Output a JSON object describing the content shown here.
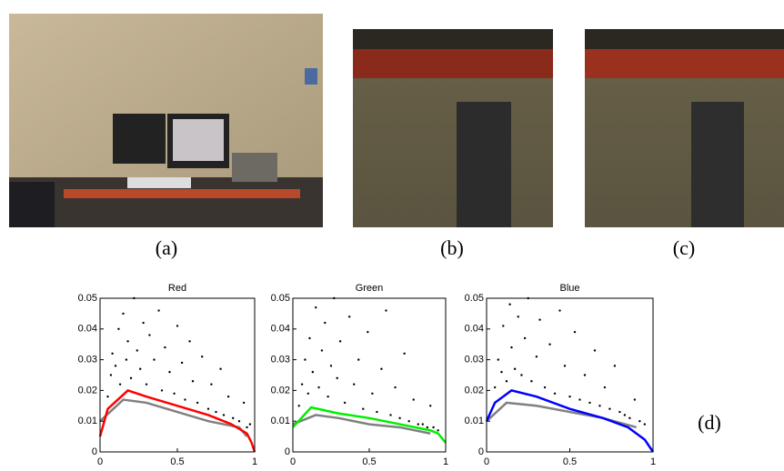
{
  "figure": {
    "labels": [
      "(a)",
      "(b)",
      "(c)",
      "(d)"
    ]
  },
  "chart_data": [
    {
      "type": "scatter",
      "title": "Red",
      "xlim": [
        0,
        1
      ],
      "ylim": [
        0,
        0.05
      ],
      "xticks": [
        0,
        0.5,
        1
      ],
      "yticks": [
        0,
        0.01,
        0.02,
        0.03,
        0.04,
        0.05
      ],
      "series": [
        {
          "mode": "markers",
          "color": "#000000",
          "x": [
            0.05,
            0.07,
            0.08,
            0.1,
            0.12,
            0.13,
            0.15,
            0.17,
            0.18,
            0.2,
            0.22,
            0.24,
            0.26,
            0.28,
            0.3,
            0.32,
            0.35,
            0.38,
            0.4,
            0.42,
            0.45,
            0.48,
            0.5,
            0.53,
            0.55,
            0.58,
            0.6,
            0.63,
            0.66,
            0.7,
            0.72,
            0.75,
            0.78,
            0.8,
            0.83,
            0.86,
            0.9,
            0.93,
            0.95,
            0.97
          ],
          "values": [
            0.018,
            0.025,
            0.032,
            0.028,
            0.04,
            0.022,
            0.045,
            0.03,
            0.036,
            0.024,
            0.05,
            0.033,
            0.027,
            0.042,
            0.022,
            0.038,
            0.03,
            0.046,
            0.02,
            0.034,
            0.026,
            0.019,
            0.041,
            0.029,
            0.017,
            0.036,
            0.023,
            0.016,
            0.031,
            0.014,
            0.022,
            0.013,
            0.027,
            0.012,
            0.018,
            0.011,
            0.01,
            0.016,
            0.008,
            0.009
          ]
        },
        {
          "mode": "line",
          "color": "#808080",
          "x": [
            0,
            0.15,
            0.3,
            0.5,
            0.7,
            0.9,
            0.95
          ],
          "values": [
            0.01,
            0.017,
            0.016,
            0.013,
            0.01,
            0.008,
            0.005
          ]
        },
        {
          "mode": "line",
          "color": "#ff0000",
          "x": [
            0,
            0.05,
            0.18,
            0.3,
            0.5,
            0.7,
            0.85,
            0.95,
            0.98,
            1
          ],
          "values": [
            0.005,
            0.014,
            0.02,
            0.018,
            0.015,
            0.012,
            0.009,
            0.006,
            0.003,
            0
          ]
        }
      ]
    },
    {
      "type": "scatter",
      "title": "Green",
      "xlim": [
        0,
        1
      ],
      "ylim": [
        0,
        0.05
      ],
      "xticks": [
        0,
        0.5,
        1
      ],
      "yticks": [
        0,
        0.01,
        0.02,
        0.03,
        0.04,
        0.05
      ],
      "series": [
        {
          "mode": "markers",
          "color": "#000000",
          "x": [
            0.04,
            0.06,
            0.08,
            0.1,
            0.11,
            0.13,
            0.15,
            0.17,
            0.19,
            0.21,
            0.23,
            0.25,
            0.27,
            0.29,
            0.31,
            0.34,
            0.37,
            0.4,
            0.43,
            0.46,
            0.49,
            0.52,
            0.55,
            0.58,
            0.61,
            0.64,
            0.67,
            0.7,
            0.73,
            0.76,
            0.79,
            0.82,
            0.85,
            0.88,
            0.9,
            0.92,
            0.95
          ],
          "values": [
            0.015,
            0.022,
            0.03,
            0.019,
            0.037,
            0.026,
            0.047,
            0.021,
            0.033,
            0.042,
            0.018,
            0.028,
            0.05,
            0.024,
            0.036,
            0.016,
            0.044,
            0.022,
            0.03,
            0.014,
            0.039,
            0.019,
            0.013,
            0.027,
            0.046,
            0.012,
            0.021,
            0.011,
            0.032,
            0.01,
            0.017,
            0.009,
            0.009,
            0.008,
            0.015,
            0.008,
            0.007
          ]
        },
        {
          "mode": "line",
          "color": "#808080",
          "x": [
            0,
            0.15,
            0.3,
            0.5,
            0.7,
            0.9
          ],
          "values": [
            0.009,
            0.012,
            0.011,
            0.009,
            0.008,
            0.006
          ]
        },
        {
          "mode": "line",
          "color": "#00ee00",
          "x": [
            0,
            0.12,
            0.3,
            0.5,
            0.7,
            0.9,
            0.95,
            1
          ],
          "values": [
            0.008,
            0.0145,
            0.0125,
            0.011,
            0.009,
            0.007,
            0.006,
            0.003
          ]
        }
      ]
    },
    {
      "type": "scatter",
      "title": "Blue",
      "xlim": [
        0,
        1
      ],
      "ylim": [
        0,
        0.05
      ],
      "xticks": [
        0,
        0.5,
        1
      ],
      "yticks": [
        0,
        0.01,
        0.02,
        0.03,
        0.04,
        0.05
      ],
      "series": [
        {
          "mode": "markers",
          "color": "#000000",
          "x": [
            0.05,
            0.07,
            0.09,
            0.1,
            0.12,
            0.14,
            0.15,
            0.17,
            0.19,
            0.21,
            0.23,
            0.25,
            0.27,
            0.3,
            0.32,
            0.35,
            0.38,
            0.41,
            0.44,
            0.47,
            0.5,
            0.53,
            0.56,
            0.59,
            0.62,
            0.65,
            0.68,
            0.71,
            0.74,
            0.77,
            0.8,
            0.83,
            0.86,
            0.89,
            0.92,
            0.95
          ],
          "values": [
            0.021,
            0.03,
            0.026,
            0.041,
            0.023,
            0.048,
            0.034,
            0.027,
            0.044,
            0.025,
            0.037,
            0.05,
            0.023,
            0.031,
            0.043,
            0.021,
            0.035,
            0.019,
            0.046,
            0.028,
            0.018,
            0.039,
            0.017,
            0.025,
            0.016,
            0.033,
            0.015,
            0.021,
            0.014,
            0.028,
            0.013,
            0.012,
            0.011,
            0.017,
            0.01,
            0.009
          ]
        },
        {
          "mode": "line",
          "color": "#808080",
          "x": [
            0,
            0.12,
            0.3,
            0.5,
            0.7,
            0.9
          ],
          "values": [
            0.01,
            0.016,
            0.015,
            0.013,
            0.011,
            0.008
          ]
        },
        {
          "mode": "line",
          "color": "#0000ff",
          "x": [
            0,
            0.05,
            0.15,
            0.3,
            0.5,
            0.7,
            0.85,
            0.95,
            1
          ],
          "values": [
            0.01,
            0.016,
            0.02,
            0.018,
            0.014,
            0.011,
            0.008,
            0.004,
            0
          ]
        }
      ]
    }
  ]
}
